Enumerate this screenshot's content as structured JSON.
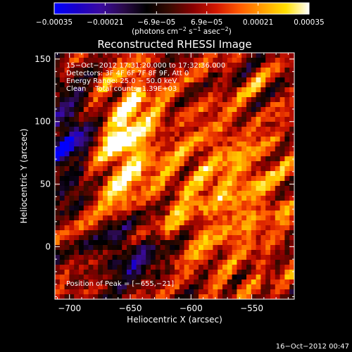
{
  "chart_data": {
    "type": "heatmap",
    "title": "Reconstructed RHESSI Image",
    "xlabel": "Heliocentric X (arcsec)",
    "ylabel": "Heliocentric Y (arcsec)",
    "xlim": [
      -712,
      -515
    ],
    "ylim": [
      -42,
      155
    ],
    "x_ticks": [
      -700,
      -650,
      -600,
      -550
    ],
    "x_tick_labels": [
      "−700",
      "−650",
      "−600",
      "−550"
    ],
    "y_ticks": [
      0,
      50,
      100,
      150
    ],
    "y_tick_labels": [
      "0",
      "50",
      "100",
      "150"
    ],
    "grid": false,
    "colorbar": {
      "range": [
        -0.00035,
        0.00035
      ],
      "ticks": [
        -0.00035,
        -0.00021,
        -6.9e-05,
        6.9e-05,
        0.00021,
        0.00035
      ],
      "tick_labels": [
        "−0.00035",
        "−0.00021",
        "−6.9e−05",
        "6.9e−05",
        "0.00021",
        "0.00035"
      ],
      "units_prefix": "(photons cm",
      "units_exp1": "−2",
      "units_mid": " s",
      "units_exp2": "−1",
      "units_mid2": " asec",
      "units_exp3": "−2",
      "units_suffix": ")",
      "colors": [
        "#0000ff",
        "#1a00c8",
        "#3a0aa0",
        "#2a0a4a",
        "#000000",
        "#3a0a00",
        "#8a0000",
        "#d41800",
        "#ff5a00",
        "#ffa000",
        "#ffe000",
        "#ffffff"
      ]
    },
    "annotations": {
      "time_range": "15−Oct−2012 17:31:20.000 to 17:32:36.000",
      "detectors": "Detectors: 3F 4F 6F 7F 8F 9F, Att 0",
      "energy": "Energy Range: 25.0 − 50.0 keV",
      "clean": "Clean    Total counts: 1.39E+03",
      "peak": "Position of Peak = [−655,−21]"
    },
    "footer_date": "16−Oct−2012 00:47",
    "peak_position": [
      -655,
      -21
    ]
  }
}
